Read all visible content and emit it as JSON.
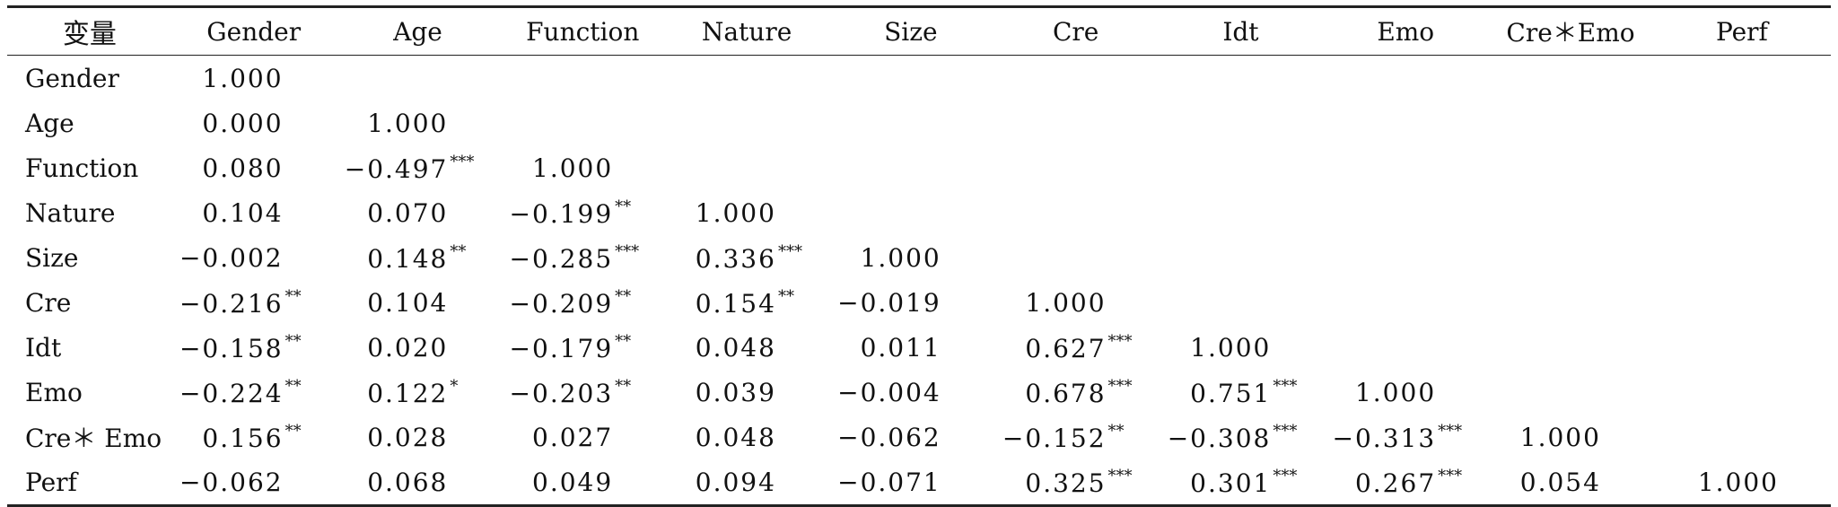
{
  "table": {
    "headers": [
      "变量",
      "Gender",
      "Age",
      "Function",
      "Nature",
      "Size",
      "Cre",
      "Idt",
      "Emo",
      "Cre＊Emo",
      "Perf"
    ],
    "rows": [
      {
        "label": "Gender",
        "cells": [
          {
            "value": "1.000",
            "sig": ""
          },
          null,
          null,
          null,
          null,
          null,
          null,
          null,
          null,
          null
        ]
      },
      {
        "label": "Age",
        "cells": [
          {
            "value": "0.000",
            "sig": ""
          },
          {
            "value": "1.000",
            "sig": ""
          },
          null,
          null,
          null,
          null,
          null,
          null,
          null,
          null
        ]
      },
      {
        "label": "Function",
        "cells": [
          {
            "value": "0.080",
            "sig": ""
          },
          {
            "value": "−0.497",
            "sig": "***"
          },
          {
            "value": "1.000",
            "sig": ""
          },
          null,
          null,
          null,
          null,
          null,
          null,
          null
        ]
      },
      {
        "label": "Nature",
        "cells": [
          {
            "value": "0.104",
            "sig": ""
          },
          {
            "value": "0.070",
            "sig": ""
          },
          {
            "value": "−0.199",
            "sig": "**"
          },
          {
            "value": "1.000",
            "sig": ""
          },
          null,
          null,
          null,
          null,
          null,
          null
        ]
      },
      {
        "label": "Size",
        "cells": [
          {
            "value": "−0.002",
            "sig": ""
          },
          {
            "value": "0.148",
            "sig": "**"
          },
          {
            "value": "−0.285",
            "sig": "***"
          },
          {
            "value": "0.336",
            "sig": "***"
          },
          {
            "value": "1.000",
            "sig": ""
          },
          null,
          null,
          null,
          null,
          null
        ]
      },
      {
        "label": "Cre",
        "cells": [
          {
            "value": "−0.216",
            "sig": "**"
          },
          {
            "value": "0.104",
            "sig": ""
          },
          {
            "value": "−0.209",
            "sig": "**"
          },
          {
            "value": "0.154",
            "sig": "**"
          },
          {
            "value": "−0.019",
            "sig": ""
          },
          {
            "value": "1.000",
            "sig": ""
          },
          null,
          null,
          null,
          null
        ]
      },
      {
        "label": "Idt",
        "cells": [
          {
            "value": "−0.158",
            "sig": "**"
          },
          {
            "value": "0.020",
            "sig": ""
          },
          {
            "value": "−0.179",
            "sig": "**"
          },
          {
            "value": "0.048",
            "sig": ""
          },
          {
            "value": "0.011",
            "sig": ""
          },
          {
            "value": "0.627",
            "sig": "***"
          },
          {
            "value": "1.000",
            "sig": ""
          },
          null,
          null,
          null
        ]
      },
      {
        "label": "Emo",
        "cells": [
          {
            "value": "−0.224",
            "sig": "**"
          },
          {
            "value": "0.122",
            "sig": "*"
          },
          {
            "value": "−0.203",
            "sig": "**"
          },
          {
            "value": "0.039",
            "sig": ""
          },
          {
            "value": "−0.004",
            "sig": ""
          },
          {
            "value": "0.678",
            "sig": "***"
          },
          {
            "value": "0.751",
            "sig": "***"
          },
          {
            "value": "1.000",
            "sig": ""
          },
          null,
          null
        ]
      },
      {
        "label": "Cre＊ Emo",
        "cells": [
          {
            "value": "0.156",
            "sig": "**"
          },
          {
            "value": "0.028",
            "sig": ""
          },
          {
            "value": "0.027",
            "sig": ""
          },
          {
            "value": "0.048",
            "sig": ""
          },
          {
            "value": "−0.062",
            "sig": ""
          },
          {
            "value": "−0.152",
            "sig": "**"
          },
          {
            "value": "−0.308",
            "sig": "***"
          },
          {
            "value": "−0.313",
            "sig": "***"
          },
          {
            "value": "1.000",
            "sig": ""
          },
          null
        ]
      },
      {
        "label": "Perf",
        "cells": [
          {
            "value": "−0.062",
            "sig": ""
          },
          {
            "value": "0.068",
            "sig": ""
          },
          {
            "value": "0.049",
            "sig": ""
          },
          {
            "value": "0.094",
            "sig": ""
          },
          {
            "value": "−0.071",
            "sig": ""
          },
          {
            "value": "0.325",
            "sig": "***"
          },
          {
            "value": "0.301",
            "sig": "***"
          },
          {
            "value": "0.267",
            "sig": "***"
          },
          {
            "value": "0.054",
            "sig": ""
          },
          {
            "value": "1.000",
            "sig": ""
          }
        ]
      }
    ]
  }
}
